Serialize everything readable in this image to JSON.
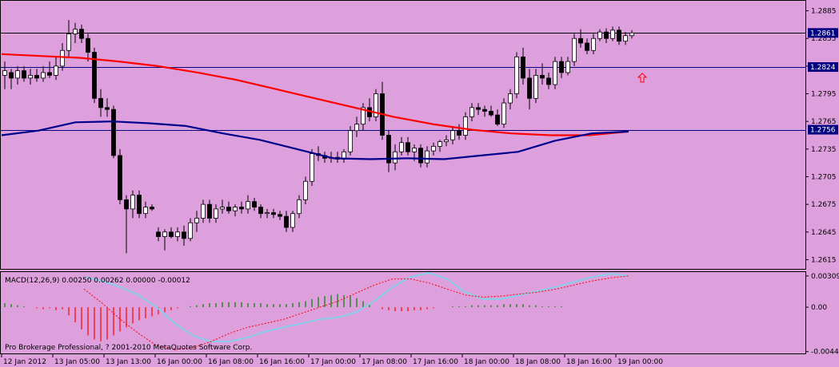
{
  "chart_data": [
    {
      "type": "candlestick",
      "title": "",
      "ylim": [
        1.2605,
        1.2895
      ],
      "y_ticks": [
        "1.2885",
        "1.2855",
        "1.2825",
        "1.2795",
        "1.2765",
        "1.2735",
        "1.2705",
        "1.2675",
        "1.2645",
        "1.2615"
      ],
      "price_tags": [
        {
          "label": "1.2861",
          "value": 1.2861,
          "style": "solid"
        },
        {
          "label": "1.2824",
          "value": 1.2824,
          "style": "solid"
        },
        {
          "label": "1.2756",
          "value": 1.2756,
          "style": "solid"
        }
      ],
      "candles": [
        [
          1.2815,
          1.283,
          1.28,
          1.282
        ],
        [
          1.2818,
          1.2822,
          1.28,
          1.2812
        ],
        [
          1.2812,
          1.2825,
          1.2805,
          1.282
        ],
        [
          1.282,
          1.2825,
          1.2808,
          1.2812
        ],
        [
          1.2812,
          1.2822,
          1.2805,
          1.2815
        ],
        [
          1.2815,
          1.2822,
          1.2808,
          1.2812
        ],
        [
          1.2812,
          1.2825,
          1.2808,
          1.2818
        ],
        [
          1.2818,
          1.283,
          1.2812,
          1.2815
        ],
        [
          1.2815,
          1.2835,
          1.281,
          1.2825
        ],
        [
          1.2825,
          1.285,
          1.282,
          1.2842
        ],
        [
          1.2842,
          1.2875,
          1.2835,
          1.286
        ],
        [
          1.286,
          1.2872,
          1.285,
          1.2865
        ],
        [
          1.2865,
          1.287,
          1.285,
          1.2855
        ],
        [
          1.2855,
          1.286,
          1.283,
          1.284
        ],
        [
          1.284,
          1.2845,
          1.2785,
          1.279
        ],
        [
          1.279,
          1.28,
          1.277,
          1.278
        ],
        [
          1.278,
          1.279,
          1.277,
          1.2778
        ],
        [
          1.2778,
          1.2782,
          1.2725,
          1.2728
        ],
        [
          1.2728,
          1.2735,
          1.2675,
          1.268
        ],
        [
          1.268,
          1.2685,
          1.2622,
          1.267
        ],
        [
          1.267,
          1.269,
          1.266,
          1.2685
        ],
        [
          1.2685,
          1.269,
          1.266,
          1.2665
        ],
        [
          1.2665,
          1.2678,
          1.266,
          1.2672
        ],
        [
          1.2672,
          1.2675,
          1.2668,
          1.267
        ],
        [
          1.2645,
          1.265,
          1.2635,
          1.264
        ],
        [
          1.264,
          1.2648,
          1.2625,
          1.2645
        ],
        [
          1.2645,
          1.265,
          1.2638,
          1.264
        ],
        [
          1.264,
          1.265,
          1.2635,
          1.2645
        ],
        [
          1.2645,
          1.2652,
          1.263,
          1.2638
        ],
        [
          1.2638,
          1.266,
          1.2635,
          1.2655
        ],
        [
          1.2655,
          1.2668,
          1.2645,
          1.266
        ],
        [
          1.266,
          1.268,
          1.2655,
          1.2675
        ],
        [
          1.2675,
          1.268,
          1.2655,
          1.266
        ],
        [
          1.266,
          1.2675,
          1.2655,
          1.267
        ],
        [
          1.267,
          1.268,
          1.2665,
          1.2672
        ],
        [
          1.2672,
          1.2678,
          1.2665,
          1.2668
        ],
        [
          1.2668,
          1.2675,
          1.2662,
          1.2672
        ],
        [
          1.2672,
          1.2678,
          1.2665,
          1.267
        ],
        [
          1.267,
          1.2685,
          1.2665,
          1.2678
        ],
        [
          1.2678,
          1.2682,
          1.2668,
          1.2672
        ],
        [
          1.2672,
          1.2675,
          1.266,
          1.2665
        ],
        [
          1.2665,
          1.267,
          1.266,
          1.2666
        ],
        [
          1.2666,
          1.267,
          1.266,
          1.2664
        ],
        [
          1.2664,
          1.2668,
          1.2658,
          1.2662
        ],
        [
          1.2662,
          1.2668,
          1.2645,
          1.265
        ],
        [
          1.265,
          1.2668,
          1.2645,
          1.2665
        ],
        [
          1.2665,
          1.2685,
          1.266,
          1.268
        ],
        [
          1.268,
          1.2705,
          1.2675,
          1.27
        ],
        [
          1.27,
          1.2735,
          1.2695,
          1.273
        ],
        [
          1.273,
          1.2738,
          1.2722,
          1.2728
        ],
        [
          1.2728,
          1.2732,
          1.272,
          1.2725
        ],
        [
          1.2725,
          1.2732,
          1.272,
          1.2726
        ],
        [
          1.2726,
          1.2732,
          1.272,
          1.2724
        ],
        [
          1.2724,
          1.2735,
          1.272,
          1.2732
        ],
        [
          1.2732,
          1.276,
          1.2728,
          1.2755
        ],
        [
          1.2755,
          1.277,
          1.2748,
          1.2762
        ],
        [
          1.2762,
          1.2785,
          1.2755,
          1.278
        ],
        [
          1.278,
          1.279,
          1.2765,
          1.277
        ],
        [
          1.277,
          1.28,
          1.2765,
          1.2795
        ],
        [
          1.2795,
          1.2808,
          1.2745,
          1.275
        ],
        [
          1.275,
          1.2755,
          1.271,
          1.272
        ],
        [
          1.272,
          1.274,
          1.2712,
          1.2732
        ],
        [
          1.2732,
          1.2748,
          1.2728,
          1.2742
        ],
        [
          1.2742,
          1.2748,
          1.2728,
          1.2732
        ],
        [
          1.2732,
          1.274,
          1.2722,
          1.2736
        ],
        [
          1.2736,
          1.274,
          1.2715,
          1.272
        ],
        [
          1.272,
          1.2738,
          1.2715,
          1.2733
        ],
        [
          1.2733,
          1.2742,
          1.2728,
          1.2738
        ],
        [
          1.2738,
          1.2745,
          1.2732,
          1.2743
        ],
        [
          1.2743,
          1.275,
          1.2738,
          1.2745
        ],
        [
          1.2745,
          1.276,
          1.274,
          1.2755
        ],
        [
          1.2755,
          1.2762,
          1.2745,
          1.275
        ],
        [
          1.275,
          1.2775,
          1.2745,
          1.277
        ],
        [
          1.277,
          1.2785,
          1.2765,
          1.278
        ],
        [
          1.278,
          1.2785,
          1.2772,
          1.2778
        ],
        [
          1.2778,
          1.2782,
          1.277,
          1.2776
        ],
        [
          1.2776,
          1.2782,
          1.277,
          1.2772
        ],
        [
          1.2772,
          1.2778,
          1.276,
          1.2762
        ],
        [
          1.2762,
          1.279,
          1.2758,
          1.2785
        ],
        [
          1.2785,
          1.28,
          1.2778,
          1.2795
        ],
        [
          1.2795,
          1.284,
          1.279,
          1.2835
        ],
        [
          1.2835,
          1.2845,
          1.2805,
          1.2812
        ],
        [
          1.2812,
          1.2822,
          1.2778,
          1.279
        ],
        [
          1.279,
          1.2822,
          1.2785,
          1.2815
        ],
        [
          1.2815,
          1.2828,
          1.2805,
          1.2812
        ],
        [
          1.2812,
          1.2818,
          1.28,
          1.2805
        ],
        [
          1.2805,
          1.2835,
          1.28,
          1.283
        ],
        [
          1.283,
          1.2835,
          1.2812,
          1.2818
        ],
        [
          1.2818,
          1.2835,
          1.2815,
          1.283
        ],
        [
          1.283,
          1.286,
          1.2825,
          1.2855
        ],
        [
          1.2855,
          1.2865,
          1.2845,
          1.285
        ],
        [
          1.285,
          1.2855,
          1.2838,
          1.2842
        ],
        [
          1.2842,
          1.286,
          1.2838,
          1.2855
        ],
        [
          1.2855,
          1.2865,
          1.2852,
          1.2862
        ],
        [
          1.2862,
          1.2866,
          1.285,
          1.2855
        ],
        [
          1.2855,
          1.2868,
          1.2852,
          1.2864
        ],
        [
          1.2864,
          1.2868,
          1.2848,
          1.2852
        ],
        [
          1.2852,
          1.2862,
          1.2848,
          1.2858
        ],
        [
          1.2858,
          1.2864,
          1.2855,
          1.2861
        ]
      ],
      "sma_red": [
        1.2838,
        1.2836,
        1.2834,
        1.283,
        1.2825,
        1.2818,
        1.281,
        1.28,
        1.279,
        1.278,
        1.277,
        1.2762,
        1.2756,
        1.2752,
        1.275,
        1.275,
        1.2754
      ],
      "sma_blue": [
        1.275,
        1.2755,
        1.2764,
        1.2765,
        1.2763,
        1.276,
        1.2752,
        1.2745,
        1.2735,
        1.2725,
        1.2724,
        1.2725,
        1.2724,
        1.2728,
        1.2732,
        1.2744,
        1.2752,
        1.2754
      ],
      "series": [
        {
          "name": "",
          "values": []
        },
        {
          "name": "",
          "values": []
        }
      ],
      "arrow": {
        "value": 1.2812
      }
    },
    {
      "type": "macd",
      "title": "MACD(12,26,9) 0.00250 0.00262 0.00000 -0.00012",
      "ylim": [
        -0.0045,
        0.0034
      ],
      "y_ticks": [
        "0.00309",
        "0.00",
        "-0.0044"
      ],
      "histogram": [
        0.0004,
        0.0003,
        0.0002,
        0.0001,
        0.0,
        -0.0001,
        -0.0002,
        -0.0001,
        -0.0003,
        -0.0002,
        -0.0008,
        -0.0015,
        -0.0022,
        -0.0028,
        -0.0032,
        -0.0034,
        -0.0032,
        -0.0028,
        -0.0024,
        -0.002,
        -0.0016,
        -0.0013,
        -0.0011,
        -0.0009,
        -0.0007,
        -0.0005,
        -0.0003,
        -0.0001,
        0.0,
        0.0001,
        0.0002,
        0.0003,
        0.0004,
        0.0004,
        0.0005,
        0.0005,
        0.0005,
        0.0005,
        0.0004,
        0.0004,
        0.0004,
        0.0003,
        0.0003,
        0.0003,
        0.0003,
        0.0004,
        0.0005,
        0.0006,
        0.0008,
        0.001,
        0.0011,
        0.0012,
        0.0013,
        0.0012,
        0.0011,
        0.0009,
        0.0006,
        0.0003,
        0.0,
        -0.0002,
        -0.0003,
        -0.0004,
        -0.0004,
        -0.0004,
        -0.0003,
        -0.0003,
        -0.0002,
        -0.0001,
        0.0,
        0.0,
        0.0001,
        0.0001,
        0.0001,
        0.0002,
        0.0002,
        0.0002,
        0.0002,
        0.0002,
        0.0003,
        0.0003,
        0.0003,
        0.0003,
        0.0002,
        0.0002,
        0.0001,
        0.0001,
        0.0001,
        0.0001,
        0.0,
        0.0,
        0.0,
        0.0,
        0.0,
        0.0,
        0.0,
        0.0,
        0.0,
        0.0,
        0.0
      ],
      "macd_line": [
        0.003,
        0.0026,
        0.002,
        0.0012,
        0.0,
        -0.0016,
        -0.0028,
        -0.0034,
        -0.0034,
        -0.003,
        -0.0024,
        -0.002,
        -0.0016,
        -0.0012,
        -0.001,
        -0.0005,
        0.0006,
        0.002,
        0.003,
        0.0034,
        0.0028,
        0.0015,
        0.0008,
        0.0008,
        0.0012,
        0.0016,
        0.002,
        0.0025,
        0.003,
        0.0033,
        0.0031
      ],
      "signal_line": [
        0.0018,
        0.0004,
        -0.0012,
        -0.0026,
        -0.0038,
        -0.0042,
        -0.004,
        -0.0034,
        -0.0026,
        -0.002,
        -0.0016,
        -0.0012,
        -0.0006,
        0.0,
        0.0006,
        0.0014,
        0.0022,
        0.0028,
        0.0028,
        0.0024,
        0.0018,
        0.0012,
        0.001,
        0.0011,
        0.0013,
        0.0015,
        0.0018,
        0.0022,
        0.0026,
        0.0029,
        0.0031
      ]
    }
  ],
  "x_labels": [
    "12 Jan 2012",
    "13 Jan 05:00",
    "13 Jan 13:00",
    "16 Jan 00:00",
    "16 Jan 08:00",
    "16 Jan 16:00",
    "17 Jan 00:00",
    "17 Jan 08:00",
    "17 Jan 16:00",
    "18 Jan 00:00",
    "18 Jan 08:00",
    "18 Jan 16:00",
    "19 Jan 00:00"
  ],
  "copyright": "Pro Brokerage Professional, ? 2001-2010 MetaQuotes Software Corp.",
  "colors": {
    "background": "#dda0dd",
    "bull": "#ffffff",
    "bear": "#000000",
    "sma_red": "#ff0000",
    "sma_blue": "#00008b",
    "price_line": "#000080",
    "tag": "#000080",
    "hist_neg": "#ff0000",
    "hist_pos": "#008000",
    "macd": "#87ceeb",
    "signal": "#ff0000",
    "arrow": "#ff0000"
  }
}
